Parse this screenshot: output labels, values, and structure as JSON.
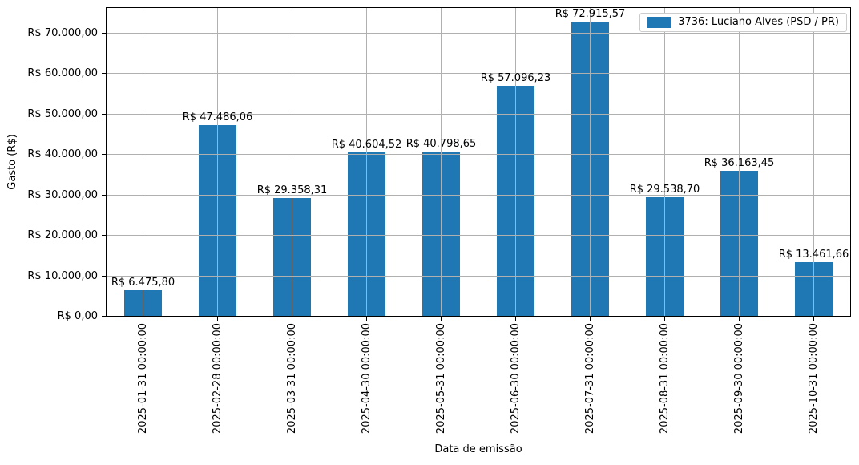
{
  "chart_data": {
    "type": "bar",
    "title": "",
    "xlabel": "Data de emissão",
    "ylabel": "Gasto (R$)",
    "categories": [
      "2025-01-31 00:00:00",
      "2025-02-28 00:00:00",
      "2025-03-31 00:00:00",
      "2025-04-30 00:00:00",
      "2025-05-31 00:00:00",
      "2025-06-30 00:00:00",
      "2025-07-31 00:00:00",
      "2025-08-31 00:00:00",
      "2025-09-30 00:00:00",
      "2025-10-31 00:00:00"
    ],
    "series": [
      {
        "name": "3736: Luciano Alves (PSD / PR)",
        "values": [
          6475.8,
          47486.06,
          29358.31,
          40604.52,
          40798.65,
          57096.23,
          72915.57,
          29538.7,
          36163.45,
          13461.66
        ],
        "value_labels": [
          "R$ 6.475,80",
          "R$ 47.486,06",
          "R$ 29.358,31",
          "R$ 40.604,52",
          "R$ 40.798,65",
          "R$ 57.096,23",
          "R$ 72.915,57",
          "R$ 29.538,70",
          "R$ 36.163,45",
          "R$ 13.461,66"
        ],
        "color": "#1f77b4"
      }
    ],
    "ylim": [
      0,
      76561
    ],
    "yticks": [
      {
        "value": 0,
        "label": "R$ 0,00"
      },
      {
        "value": 10000,
        "label": "R$ 10.000,00"
      },
      {
        "value": 20000,
        "label": "R$ 20.000,00"
      },
      {
        "value": 30000,
        "label": "R$ 30.000,00"
      },
      {
        "value": 40000,
        "label": "R$ 40.000,00"
      },
      {
        "value": 50000,
        "label": "R$ 50.000,00"
      },
      {
        "value": 60000,
        "label": "R$ 60.000,00"
      },
      {
        "value": 70000,
        "label": "R$ 70.000,00"
      }
    ],
    "grid": true,
    "grid_color": "#b0b0b0",
    "legend": {
      "position": "upper right",
      "entries": [
        {
          "label": "3736: Luciano Alves (PSD / PR)",
          "color": "#1f77b4"
        }
      ]
    }
  }
}
